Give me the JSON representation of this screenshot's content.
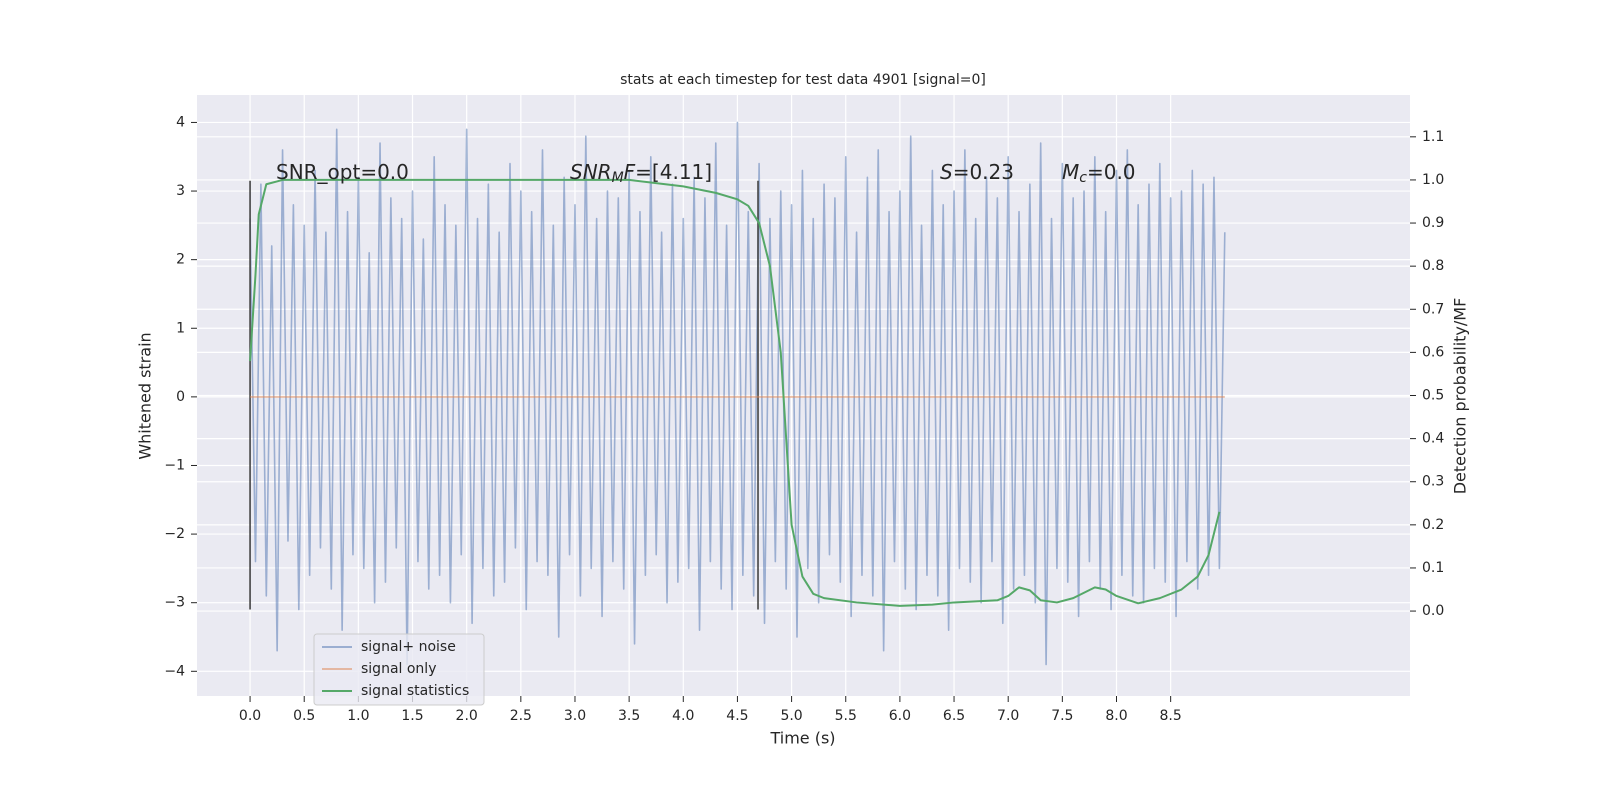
{
  "chart_data": {
    "type": "line",
    "title": "stats at each timestep for test data 4901 [signal=0]",
    "xlabel": "Time (s)",
    "ylabel": "Whitened strain",
    "y2label": "Detection probability/MF",
    "xlim": [
      -0.49,
      10.71
    ],
    "ylim": [
      -4.36,
      4.4
    ],
    "y2lim": [
      -0.197,
      1.197
    ],
    "xticks": [
      {
        "value": 0,
        "label": "0.0"
      },
      0.5,
      {
        "value": 1,
        "label": "1.0"
      },
      1.5,
      {
        "value": 2,
        "label": "2.0"
      },
      2.5,
      {
        "value": 3,
        "label": "3.0"
      },
      3.5,
      {
        "value": 4,
        "label": "4.0"
      },
      4.5,
      {
        "value": 5,
        "label": "5.0"
      },
      5.5,
      {
        "value": 6,
        "label": "6.0"
      },
      6.5,
      {
        "value": 7,
        "label": "7.0"
      },
      7.5,
      {
        "value": 8,
        "label": "8.0"
      },
      8.5
    ],
    "yticks": [
      {
        "value": -4,
        "label": "−4"
      },
      {
        "value": -3,
        "label": "−3"
      },
      {
        "value": -2,
        "label": "−2"
      },
      {
        "value": -1,
        "label": "−1"
      },
      0,
      1,
      2,
      3,
      4
    ],
    "y2ticks": [
      {
        "value": 0,
        "label": "0.0"
      },
      0.1,
      0.2,
      0.3,
      0.4,
      0.5,
      0.6,
      0.7,
      0.8,
      0.9,
      {
        "value": 1,
        "label": "1.0"
      },
      1.1
    ],
    "grid": true,
    "legend": "lower left",
    "series": [
      {
        "name": "signal+ noise",
        "color": "#4c72b0",
        "alpha": 0.5,
        "x": [
          0,
          0.05,
          0.1,
          0.15,
          0.2,
          0.25,
          0.3,
          0.35,
          0.4,
          0.45,
          0.5,
          0.55,
          0.6,
          0.65,
          0.7,
          0.75,
          0.8,
          0.85,
          0.9,
          0.95,
          1,
          1.05,
          1.1,
          1.15,
          1.2,
          1.25,
          1.3,
          1.35,
          1.4,
          1.45,
          1.5,
          1.55,
          1.6,
          1.65,
          1.7,
          1.75,
          1.8,
          1.85,
          1.9,
          1.95,
          2,
          2.05,
          2.1,
          2.15,
          2.2,
          2.25,
          2.3,
          2.35,
          2.4,
          2.45,
          2.5,
          2.55,
          2.6,
          2.65,
          2.7,
          2.75,
          2.8,
          2.85,
          2.9,
          2.95,
          3,
          3.05,
          3.1,
          3.15,
          3.2,
          3.25,
          3.3,
          3.35,
          3.4,
          3.45,
          3.5,
          3.55,
          3.6,
          3.65,
          3.7,
          3.75,
          3.8,
          3.85,
          3.9,
          3.95,
          4,
          4.05,
          4.1,
          4.15,
          4.2,
          4.25,
          4.3,
          4.35,
          4.4,
          4.45,
          4.5,
          4.55,
          4.6,
          4.65,
          4.7,
          4.75,
          4.8,
          4.85,
          4.9,
          4.95,
          5,
          5.05,
          5.1,
          5.15,
          5.2,
          5.25,
          5.3,
          5.35,
          5.4,
          5.45,
          5.5,
          5.55,
          5.6,
          5.65,
          5.7,
          5.75,
          5.8,
          5.85,
          5.9,
          5.95,
          6,
          6.05,
          6.1,
          6.15,
          6.2,
          6.25,
          6.3,
          6.35,
          6.4,
          6.45,
          6.5,
          6.55,
          6.6,
          6.65,
          6.7,
          6.75,
          6.8,
          6.85,
          6.9,
          6.95,
          7,
          7.05,
          7.1,
          7.15,
          7.2,
          7.25,
          7.3,
          7.35,
          7.4,
          7.45,
          7.5,
          7.55,
          7.6,
          7.65,
          7.7,
          7.75,
          7.8,
          7.85,
          7.9,
          7.95,
          8,
          8.05,
          8.1,
          8.15,
          8.2,
          8.25,
          8.3,
          8.35,
          8.4,
          8.45,
          8.5,
          8.55,
          8.6,
          8.65,
          8.7,
          8.75,
          8.8,
          8.85,
          8.9,
          8.95,
          9
        ],
        "values": [
          2.6,
          -2.4,
          3.1,
          -2.9,
          2.2,
          -3.7,
          3.6,
          -2.1,
          2.8,
          -3.1,
          2.5,
          -2.6,
          3.3,
          -2.2,
          2.4,
          -2.8,
          3.9,
          -3.4,
          2.7,
          -2.3,
          3.2,
          -2.5,
          2.1,
          -3.0,
          3.7,
          -2.7,
          2.9,
          -2.2,
          2.6,
          -3.9,
          3.0,
          -2.4,
          2.3,
          -2.8,
          3.5,
          -2.6,
          2.8,
          -3.0,
          2.5,
          -2.3,
          3.9,
          -3.3,
          2.6,
          -2.5,
          3.1,
          -2.9,
          2.4,
          -2.7,
          3.4,
          -2.2,
          3.0,
          -3.1,
          2.7,
          -2.4,
          3.6,
          -2.6,
          2.5,
          -3.5,
          3.2,
          -2.3,
          2.8,
          -2.9,
          3.8,
          -2.5,
          2.6,
          -3.2,
          3.0,
          -2.4,
          2.9,
          -2.8,
          3.3,
          -3.6,
          2.7,
          -2.6,
          3.5,
          -2.3,
          2.4,
          -3.0,
          3.1,
          -2.7,
          2.6,
          -2.5,
          3.2,
          -3.4,
          2.9,
          -2.4,
          3.7,
          -2.8,
          2.5,
          -3.1,
          4.0,
          -2.6,
          2.7,
          -2.9,
          3.4,
          -3.3,
          2.6,
          -2.4,
          3.0,
          -2.8,
          2.8,
          -3.5,
          3.3,
          -2.5,
          2.6,
          -3.0,
          3.1,
          -2.3,
          2.9,
          -2.7,
          3.5,
          -3.2,
          2.4,
          -2.6,
          3.2,
          -2.9,
          3.6,
          -3.7,
          2.7,
          -2.4,
          3.0,
          -2.8,
          3.8,
          -3.1,
          2.5,
          -2.6,
          3.3,
          -2.9,
          2.8,
          -3.4,
          3.0,
          -2.5,
          3.6,
          -2.7,
          2.6,
          -3.0,
          3.2,
          -2.4,
          2.9,
          -3.3,
          3.5,
          -2.8,
          2.7,
          -2.6,
          3.1,
          -3.0,
          3.7,
          -3.9,
          2.6,
          -2.5,
          3.4,
          -2.7,
          2.9,
          -3.2,
          3.0,
          -2.4,
          3.5,
          -2.8,
          2.7,
          -3.1,
          3.3,
          -2.6,
          3.6,
          -2.9,
          2.8,
          -3.0,
          3.1,
          -2.5,
          3.4,
          -2.7,
          2.9,
          -3.2,
          3.0,
          -2.4,
          3.3,
          -2.8,
          3.1,
          -2.6,
          3.2,
          -2.5,
          2.4
        ]
      },
      {
        "name": "signal only",
        "color": "#dd8452",
        "alpha": 0.5,
        "x": [
          0,
          9
        ],
        "values": [
          0,
          0
        ]
      },
      {
        "name": "signal statistics",
        "color": "#55a868",
        "alpha": 1,
        "axis": "y2",
        "x": [
          0,
          0.05,
          0.08,
          0.15,
          0.3,
          2.0,
          3.5,
          4.0,
          4.3,
          4.5,
          4.6,
          4.7,
          4.8,
          4.9,
          5.0,
          5.1,
          5.2,
          5.3,
          5.6,
          6.0,
          6.3,
          6.5,
          6.9,
          7.0,
          7.1,
          7.2,
          7.3,
          7.45,
          7.6,
          7.8,
          7.9,
          8.0,
          8.2,
          8.4,
          8.6,
          8.75,
          8.85,
          8.95
        ],
        "values": [
          0.58,
          0.78,
          0.92,
          0.99,
          1.0,
          1.0,
          1.0,
          0.985,
          0.97,
          0.955,
          0.94,
          0.9,
          0.8,
          0.6,
          0.2,
          0.08,
          0.04,
          0.03,
          0.02,
          0.012,
          0.015,
          0.02,
          0.025,
          0.035,
          0.055,
          0.048,
          0.025,
          0.02,
          0.03,
          0.055,
          0.05,
          0.035,
          0.018,
          0.03,
          0.05,
          0.08,
          0.13,
          0.23
        ]
      }
    ],
    "vlines": {
      "x": [
        0,
        4.69
      ],
      "ymin": -3.1,
      "ymax": 3.15,
      "color": "#444444"
    },
    "annotations": [
      [
        "SNR_opt=0.0"
      ],
      [
        "SNR",
        "M",
        "F",
        "=[4.11]"
      ],
      [
        "S",
        "=0.23"
      ],
      [
        "M",
        "c",
        "=0.0"
      ]
    ]
  }
}
